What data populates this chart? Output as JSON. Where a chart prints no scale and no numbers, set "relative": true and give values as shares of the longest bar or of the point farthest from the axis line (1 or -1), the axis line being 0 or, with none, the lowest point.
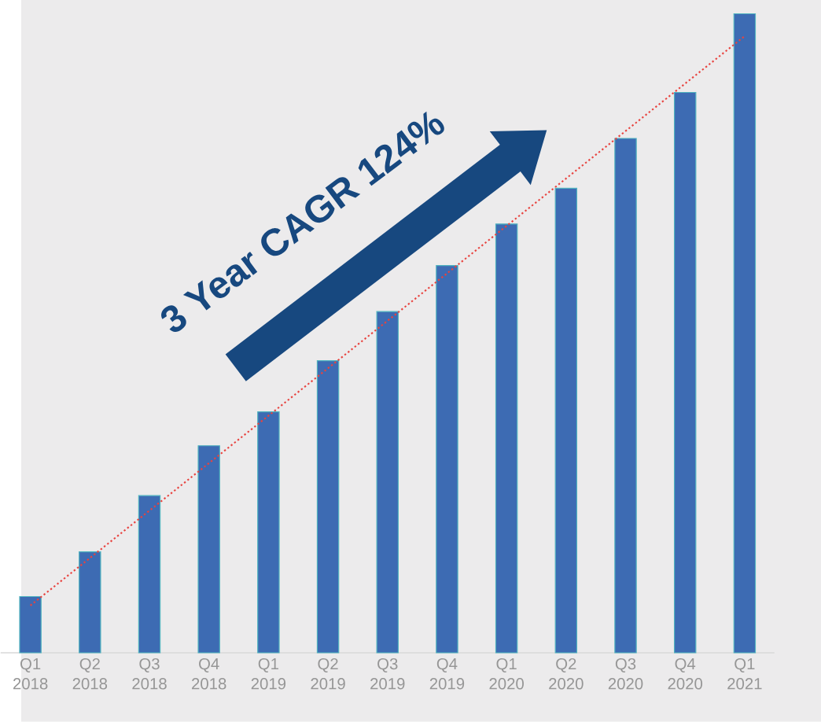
{
  "chart_data": {
    "type": "bar",
    "relative": true,
    "categories": [
      "Q1 2018",
      "Q2 2018",
      "Q3 2018",
      "Q4 2018",
      "Q1 2019",
      "Q2 2019",
      "Q3 2019",
      "Q4 2019",
      "Q1 2020",
      "Q2 2020",
      "Q3 2020",
      "Q4 2020",
      "Q1 2021"
    ],
    "series": [
      {
        "color": "#3d6bb3",
        "values": [
          0.088,
          0.158,
          0.246,
          0.324,
          0.377,
          0.457,
          0.534,
          0.606,
          0.671,
          0.727,
          0.805,
          0.877,
          1.0
        ]
      },
      {
        "type": "line",
        "x": [
          "Q1 2018",
          "Q1 2021"
        ],
        "values": [
          0.074,
          0.965
        ],
        "color": "#e8433f",
        "line_style": "dotted"
      }
    ],
    "annotations": [
      "3 Year CAGR 124%"
    ]
  }
}
